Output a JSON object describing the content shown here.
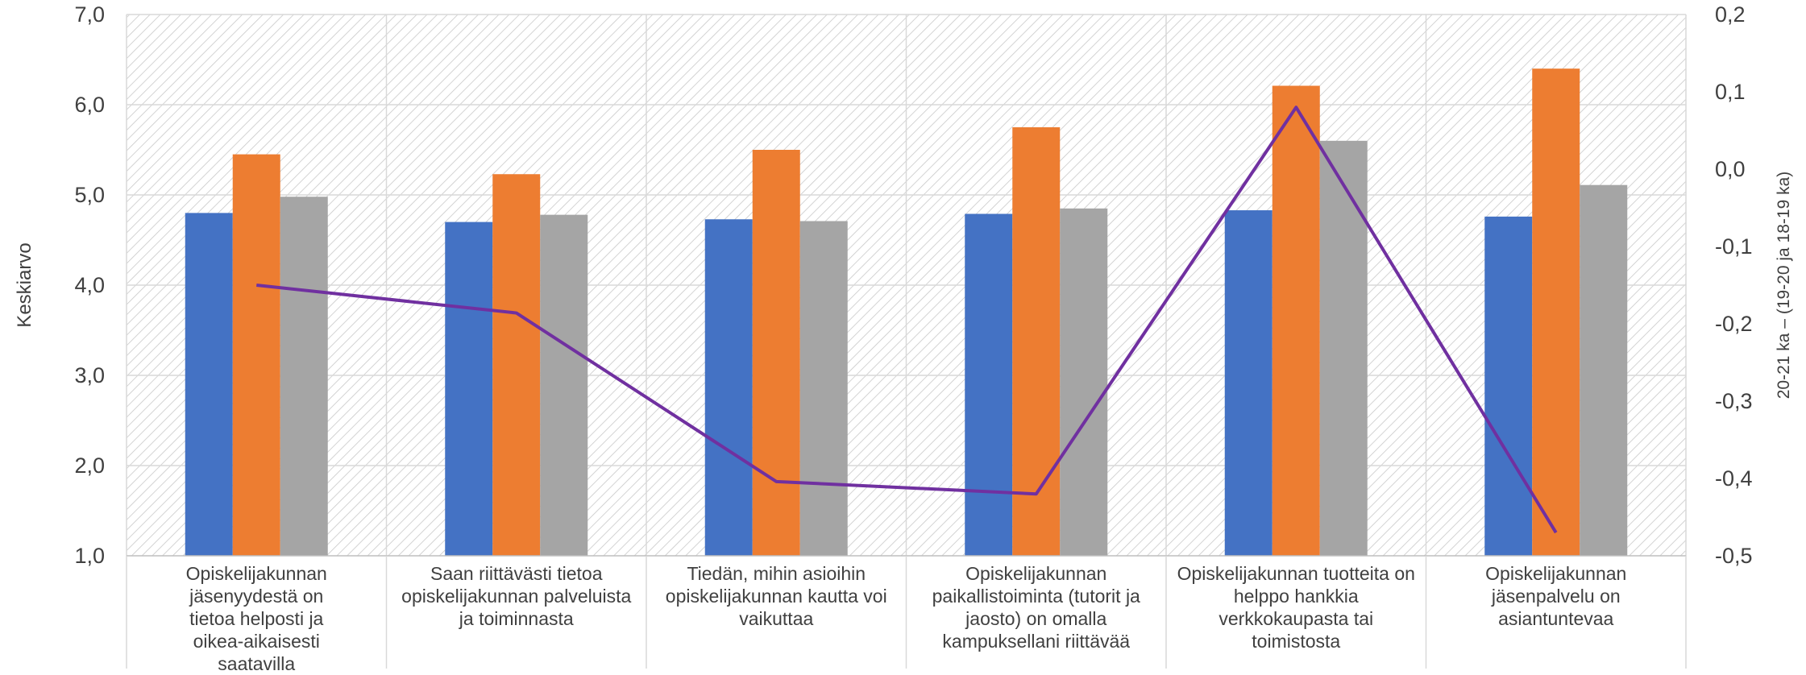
{
  "chart_data": {
    "type": "bar",
    "title": "",
    "categories": [
      "Opiskelijakunnan jäsenyydestä on tietoa helposti ja oikea-aikaisesti saatavilla",
      "Saan riittävästi tietoa opiskelijakunnan palveluista ja toiminnasta",
      "Tiedän, mihin asioihin opiskelijakunnan kautta voi vaikuttaa",
      "Opiskelijakunnan paikallistoiminta (tutorit ja jaosto) on omalla kampuksellani riittävää",
      "Opiskelijakunnan tuotteita on helppo hankkia verkkokaupasta tai toimistosta",
      "Opiskelijakunnan jäsenpalvelu on asiantuntevaa"
    ],
    "series": [
      {
        "values": [
          4.8,
          4.7,
          4.73,
          4.79,
          4.83,
          4.76
        ],
        "color": "#4472C4",
        "axis": "left"
      },
      {
        "values": [
          5.45,
          5.23,
          5.5,
          5.75,
          6.21,
          6.4
        ],
        "color": "#ED7D31",
        "axis": "left"
      },
      {
        "values": [
          4.98,
          4.78,
          4.71,
          4.85,
          5.6,
          5.11
        ],
        "color": "#A5A5A5",
        "axis": "left"
      }
    ],
    "line_series": {
      "type": "line",
      "values": [
        -0.15,
        -0.186,
        -0.404,
        -0.42,
        0.08,
        -0.47
      ],
      "color": "#7030A0",
      "axis": "right"
    },
    "y_left": {
      "label": "Keskiarvo",
      "ylim": [
        1.0,
        7.0
      ],
      "ticks": [
        "1,0",
        "2,0",
        "3,0",
        "4,0",
        "5,0",
        "6,0",
        "7,0"
      ],
      "tick_values": [
        1,
        2,
        3,
        4,
        5,
        6,
        7
      ]
    },
    "y_right": {
      "label": "20-21 ka – (19-20 ja 18-19 ka)",
      "ylim": [
        -0.5,
        0.2
      ],
      "ticks": [
        "-0,5",
        "-0,4",
        "-0,3",
        "-0,2",
        "-0,1",
        "0,0",
        "0,1",
        "0,2"
      ],
      "tick_values": [
        -0.5,
        -0.4,
        -0.3,
        -0.2,
        -0.1,
        0.0,
        0.1,
        0.2
      ]
    },
    "grid": true,
    "legend": "none"
  }
}
